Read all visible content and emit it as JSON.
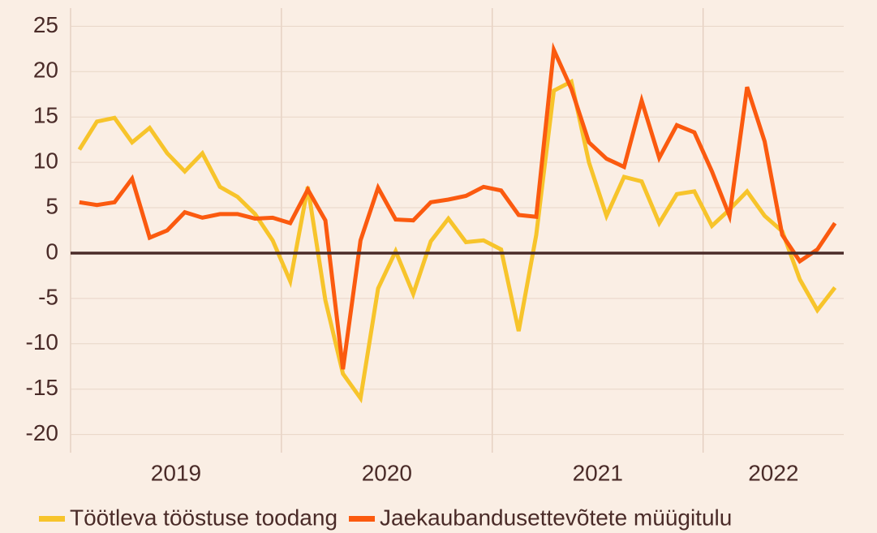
{
  "chart_data": {
    "type": "line",
    "categories": [
      null,
      null,
      null,
      null,
      null,
      null,
      "2019",
      null,
      null,
      null,
      null,
      null,
      null,
      null,
      null,
      null,
      null,
      null,
      "2020",
      null,
      null,
      null,
      null,
      null,
      null,
      null,
      null,
      null,
      null,
      null,
      "2021",
      null,
      null,
      null,
      null,
      null,
      null,
      null,
      null,
      null,
      "2022",
      null,
      null,
      null
    ],
    "series": [
      {
        "name": "Töötleva tööstuse toodang",
        "color": "#f7c42b",
        "values": [
          11.4,
          14.5,
          14.9,
          12.2,
          13.8,
          11,
          9,
          11,
          7.3,
          6.2,
          4.3,
          1.4,
          -3.1,
          7.3,
          -5.2,
          -13.3,
          -16,
          -3.9,
          0.2,
          -4.5,
          1.3,
          3.8,
          1.2,
          1.4,
          0.4,
          -8.6,
          2,
          17.9,
          18.9,
          10,
          4.1,
          8.4,
          7.9,
          3.3,
          6.5,
          6.8,
          3,
          4.8,
          6.8,
          4.1,
          2.4,
          -2.9,
          -6.3,
          -3.8
        ]
      },
      {
        "name": "Jaekaubandusettevõtete müügitulu",
        "color": "#fb5a0f",
        "values": [
          5.6,
          5.3,
          5.6,
          8.2,
          1.7,
          2.5,
          4.5,
          3.9,
          4.3,
          4.3,
          3.8,
          3.9,
          3.3,
          7,
          3.6,
          -12.8,
          1.4,
          7.2,
          3.7,
          3.6,
          5.6,
          5.9,
          6.3,
          7.3,
          6.9,
          4.2,
          4,
          22.4,
          18.1,
          12.2,
          10.4,
          9.5,
          16.8,
          10.5,
          14.1,
          13.3,
          9,
          4.1,
          18.3,
          12.3,
          2,
          -0.9,
          0.4,
          3.3
        ]
      }
    ],
    "ylim": [
      -22,
      27
    ],
    "yticks": [
      -20,
      -15,
      -10,
      -5,
      0,
      5,
      10,
      15,
      20,
      25
    ],
    "grid": true
  }
}
